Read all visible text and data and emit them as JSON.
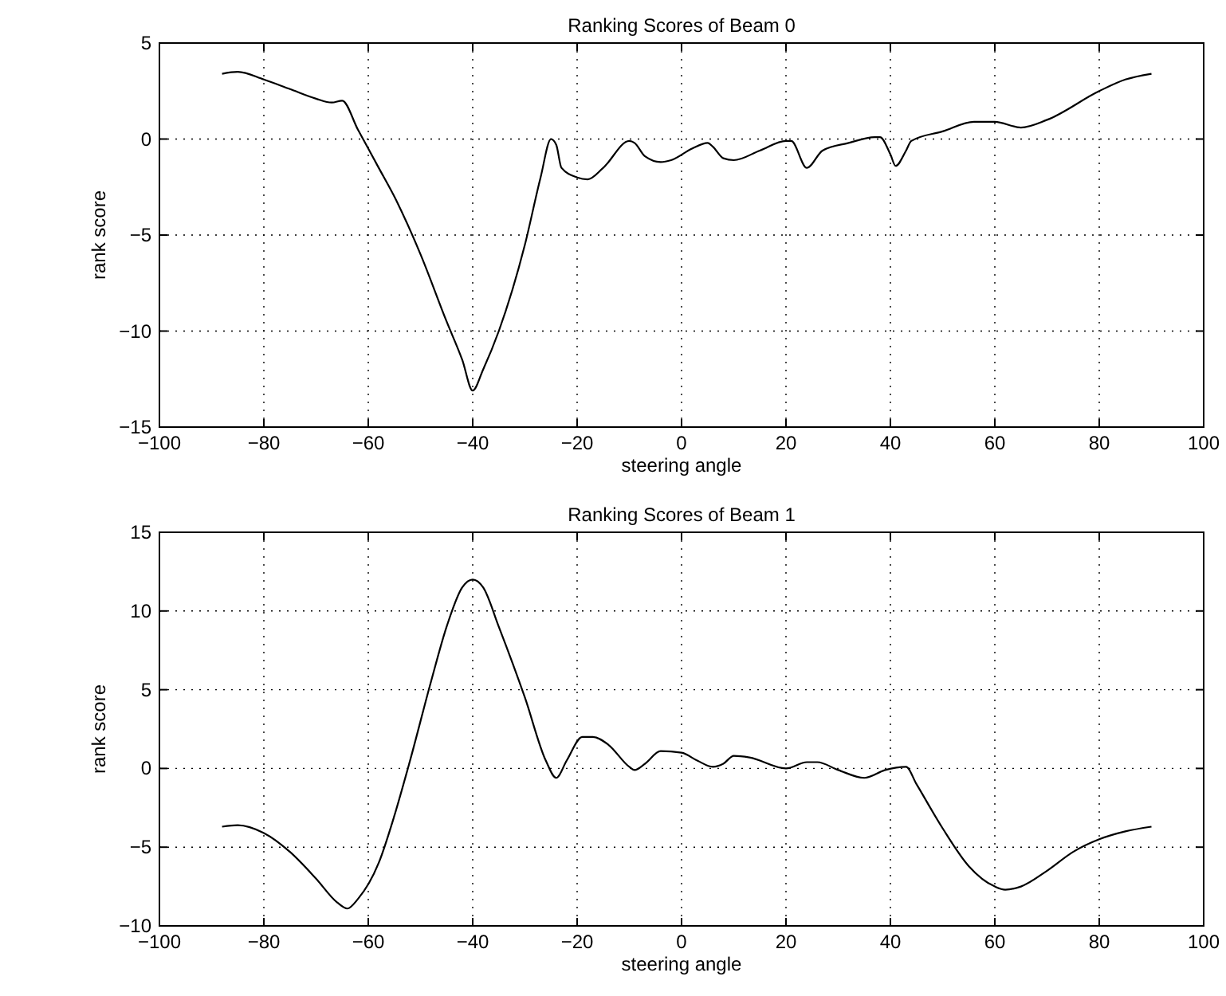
{
  "chart_data": [
    {
      "type": "line",
      "title": "Ranking Scores of Beam 0",
      "xlabel": "steering angle",
      "ylabel": "rank score",
      "xlim": [
        -100,
        100
      ],
      "xticks": [
        -100,
        -80,
        -60,
        -40,
        -20,
        0,
        20,
        40,
        60,
        80,
        100
      ],
      "ylim": [
        -15,
        5
      ],
      "yticks": [
        -15,
        -10,
        -5,
        0,
        5
      ],
      "grid": true,
      "series": [
        {
          "color": "#000000",
          "x": [
            -88,
            -85,
            -80,
            -75,
            -70,
            -67,
            -65,
            -62,
            -58,
            -55,
            -50,
            -45,
            -42,
            -40,
            -38,
            -35,
            -30,
            -27,
            -25,
            -24,
            -23,
            -20,
            -18,
            -15,
            -10,
            -9,
            -7,
            -4,
            -2,
            2,
            5,
            6,
            8,
            10,
            15,
            20,
            21,
            24,
            27,
            32,
            37,
            38,
            40,
            41,
            43,
            44,
            50,
            56,
            60,
            65,
            70,
            80,
            85,
            90
          ],
          "values": [
            3.4,
            3.5,
            3.1,
            2.6,
            2.1,
            1.9,
            2.0,
            0.5,
            -1.5,
            -3.0,
            -6.0,
            -9.5,
            -11.5,
            -13.1,
            -12.0,
            -10.0,
            -5.5,
            -2.0,
            0.0,
            -0.3,
            -1.5,
            -2.0,
            -2.1,
            -1.5,
            -0.1,
            -0.2,
            -0.9,
            -1.2,
            -1.1,
            -0.5,
            -0.2,
            -0.4,
            -1.0,
            -1.1,
            -0.6,
            -0.1,
            -0.1,
            -1.5,
            -0.6,
            -0.2,
            0.1,
            0.1,
            -0.8,
            -1.4,
            -0.6,
            -0.1,
            0.4,
            0.9,
            0.9,
            0.6,
            1.0,
            2.5,
            3.1,
            3.4
          ]
        }
      ]
    },
    {
      "type": "line",
      "title": "Ranking Scores of Beam 1",
      "xlabel": "steering angle",
      "ylabel": "rank score",
      "xlim": [
        -100,
        100
      ],
      "xticks": [
        -100,
        -80,
        -60,
        -40,
        -20,
        0,
        20,
        40,
        60,
        80,
        100
      ],
      "ylim": [
        -10,
        15
      ],
      "yticks": [
        -10,
        -5,
        0,
        5,
        10,
        15
      ],
      "grid": true,
      "series": [
        {
          "color": "#000000",
          "x": [
            -88,
            -85,
            -80,
            -75,
            -70,
            -66,
            -64,
            -62,
            -58,
            -55,
            -52,
            -48,
            -45,
            -42,
            -40,
            -38,
            -35,
            -30,
            -26,
            -24,
            -22,
            -19,
            -17,
            -14,
            -10,
            -9,
            -7,
            -4,
            0,
            3,
            6,
            8,
            10,
            13,
            20,
            24,
            26,
            30,
            35,
            39,
            43,
            45,
            50,
            55,
            60,
            62,
            65,
            70,
            75,
            80,
            85,
            90
          ],
          "values": [
            -3.7,
            -3.6,
            -4.1,
            -5.3,
            -7.0,
            -8.5,
            -8.9,
            -8.3,
            -6.0,
            -3.0,
            0.5,
            5.5,
            9.0,
            11.5,
            12.0,
            11.5,
            9.0,
            4.5,
            0.5,
            -0.6,
            0.5,
            2.0,
            2.0,
            1.5,
            0.1,
            -0.1,
            0.3,
            1.1,
            1.0,
            0.5,
            0.1,
            0.3,
            0.8,
            0.7,
            0.0,
            0.4,
            0.4,
            -0.1,
            -0.6,
            -0.1,
            0.1,
            -1.0,
            -3.8,
            -6.2,
            -7.5,
            -7.7,
            -7.5,
            -6.5,
            -5.3,
            -4.5,
            -4.0,
            -3.7
          ]
        }
      ]
    }
  ]
}
